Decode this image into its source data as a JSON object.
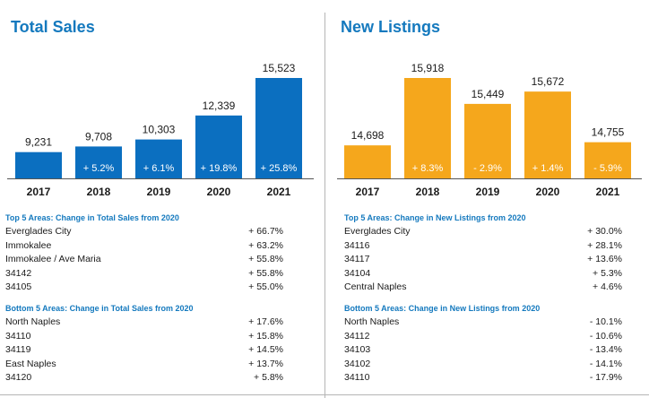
{
  "chart_data": [
    {
      "type": "bar",
      "title": "Total Sales",
      "categories": [
        "2017",
        "2018",
        "2019",
        "2020",
        "2021"
      ],
      "values": [
        9231,
        9708,
        10303,
        12339,
        15523
      ],
      "value_labels": [
        "9,231",
        "9,708",
        "10,303",
        "12,339",
        "15,523"
      ],
      "change_labels": [
        "",
        "+ 5.2%",
        "+ 6.1%",
        "+ 19.8%",
        "+ 25.8%"
      ],
      "ylim": [
        7000,
        15523
      ],
      "bar_color": "#0b6fc0"
    },
    {
      "type": "bar",
      "title": "New Listings",
      "categories": [
        "2017",
        "2018",
        "2019",
        "2020",
        "2021"
      ],
      "values": [
        14698,
        15918,
        15449,
        15672,
        14755
      ],
      "value_labels": [
        "14,698",
        "15,918",
        "15,449",
        "15,672",
        "14,755"
      ],
      "change_labels": [
        "",
        "+ 8.3%",
        "- 2.9%",
        "+ 1.4%",
        "- 5.9%"
      ],
      "ylim": [
        14100,
        15918
      ],
      "bar_color": "#f5a71c"
    }
  ],
  "colors": {
    "accent": "#1479be",
    "sales_bar": "#0b6fc0",
    "listings_bar": "#f5a71c"
  },
  "sales_top": {
    "title": "Top 5 Areas: Change in Total Sales from 2020",
    "rows": [
      {
        "area": "Everglades City",
        "change": "+ 66.7%"
      },
      {
        "area": "Immokalee",
        "change": "+ 63.2%"
      },
      {
        "area": "Immokalee / Ave Maria",
        "change": "+ 55.8%"
      },
      {
        "area": "34142",
        "change": "+ 55.8%"
      },
      {
        "area": "34105",
        "change": "+ 55.0%"
      }
    ]
  },
  "sales_bottom": {
    "title": "Bottom 5 Areas: Change in Total Sales from 2020",
    "rows": [
      {
        "area": "North Naples",
        "change": "+ 17.6%"
      },
      {
        "area": "34110",
        "change": "+ 15.8%"
      },
      {
        "area": "34119",
        "change": "+ 14.5%"
      },
      {
        "area": "East Naples",
        "change": "+ 13.7%"
      },
      {
        "area": "34120",
        "change": "+ 5.8%"
      }
    ]
  },
  "listings_top": {
    "title": "Top 5 Areas: Change in New Listings from 2020",
    "rows": [
      {
        "area": "Everglades City",
        "change": "+ 30.0%"
      },
      {
        "area": "34116",
        "change": "+ 28.1%"
      },
      {
        "area": "34117",
        "change": "+ 13.6%"
      },
      {
        "area": "34104",
        "change": "+ 5.3%"
      },
      {
        "area": "Central Naples",
        "change": "+ 4.6%"
      }
    ]
  },
  "listings_bottom": {
    "title": "Bottom 5 Areas: Change in New Listings from 2020",
    "rows": [
      {
        "area": "North Naples",
        "change": "- 10.1%"
      },
      {
        "area": "34112",
        "change": "- 10.6%"
      },
      {
        "area": "34103",
        "change": "- 13.4%"
      },
      {
        "area": "34102",
        "change": "- 14.1%"
      },
      {
        "area": "34110",
        "change": "- 17.9%"
      }
    ]
  }
}
